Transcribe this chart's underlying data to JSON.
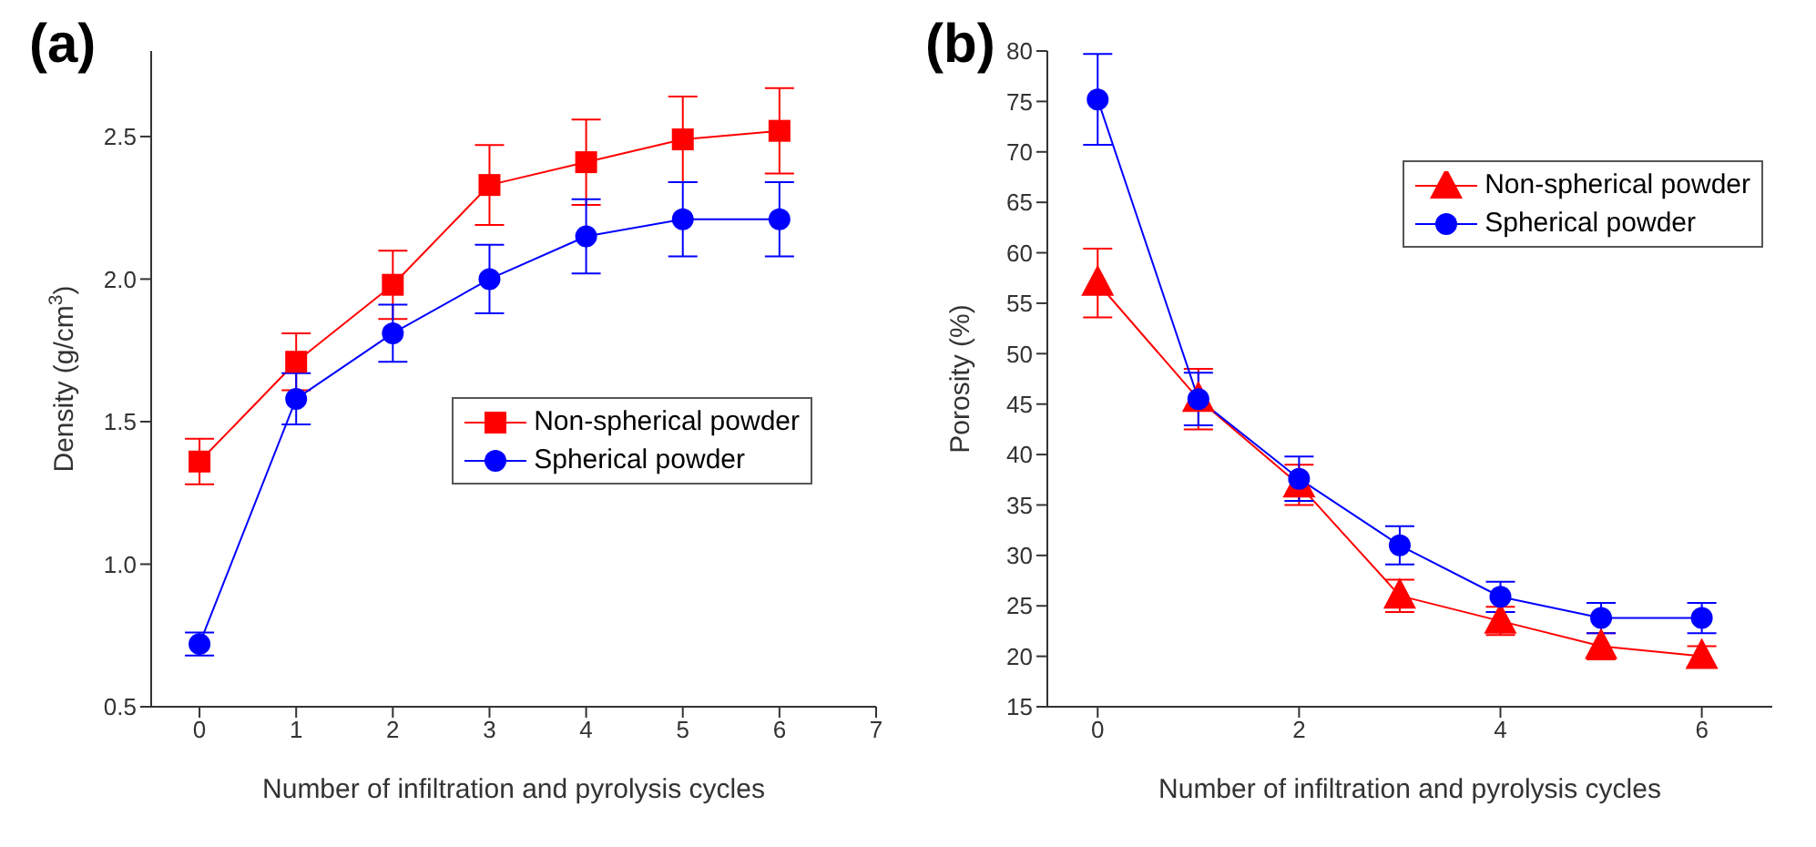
{
  "chart_data": [
    {
      "type": "line",
      "title": "(a)",
      "xlabel": "Number of infiltration and pyrolysis cycles",
      "ylabel": "Density (g/cm$^{3}$)",
      "x": [
        0,
        1,
        2,
        3,
        4,
        5,
        6
      ],
      "xlim": [
        -0.5,
        7
      ],
      "xticks": [
        0,
        1,
        2,
        3,
        4,
        5,
        6,
        7
      ],
      "ylim": [
        0.5,
        2.8
      ],
      "yticks": [
        0.5,
        {
          "value": 1,
          "label": "1.0"
        },
        1.5,
        {
          "value": 2,
          "label": "2.0"
        },
        2.5
      ],
      "legend": "right",
      "series": [
        {
          "name": "Non-spherical powder",
          "color": "#ff0000",
          "marker": "square",
          "values": [
            1.36,
            1.71,
            1.98,
            2.33,
            2.41,
            2.49,
            2.52
          ],
          "errors": [
            0.08,
            0.1,
            0.12,
            0.14,
            0.15,
            0.15,
            0.15
          ]
        },
        {
          "name": "Spherical powder",
          "color": "#0000ff",
          "marker": "circle",
          "values": [
            0.72,
            1.58,
            1.81,
            2.0,
            2.15,
            2.21,
            2.21
          ],
          "errors": [
            0.04,
            0.09,
            0.1,
            0.12,
            0.13,
            0.13,
            0.13
          ]
        }
      ]
    },
    {
      "type": "line",
      "title": "(b)",
      "xlabel": "Number of infiltration and pyrolysis cycles",
      "ylabel": "Porosity (%)",
      "x": [
        0,
        1,
        2,
        3,
        4,
        5,
        6
      ],
      "xlim": [
        -0.5,
        6.7
      ],
      "xticks": [
        0,
        2,
        4,
        6
      ],
      "ylim": [
        15,
        80
      ],
      "yticks": [
        15,
        20,
        25,
        30,
        35,
        40,
        45,
        50,
        55,
        60,
        65,
        70,
        75,
        80
      ],
      "legend": "top right",
      "series": [
        {
          "name": "Non-spherical powder",
          "color": "#ff0000",
          "marker": "triangle",
          "values": [
            57,
            45.5,
            37,
            26,
            23.5,
            21,
            20
          ],
          "errors": [
            3.4,
            3.0,
            2,
            1.6,
            1.4,
            1.3,
            1
          ]
        },
        {
          "name": "Spherical powder",
          "color": "#0000ff",
          "marker": "circle",
          "values": [
            75.2,
            45.5,
            37.6,
            31,
            25.9,
            23.8,
            23.8
          ],
          "errors": [
            4.5,
            2.6,
            2.2,
            1.9,
            1.5,
            1.5,
            1.5
          ]
        }
      ]
    }
  ]
}
